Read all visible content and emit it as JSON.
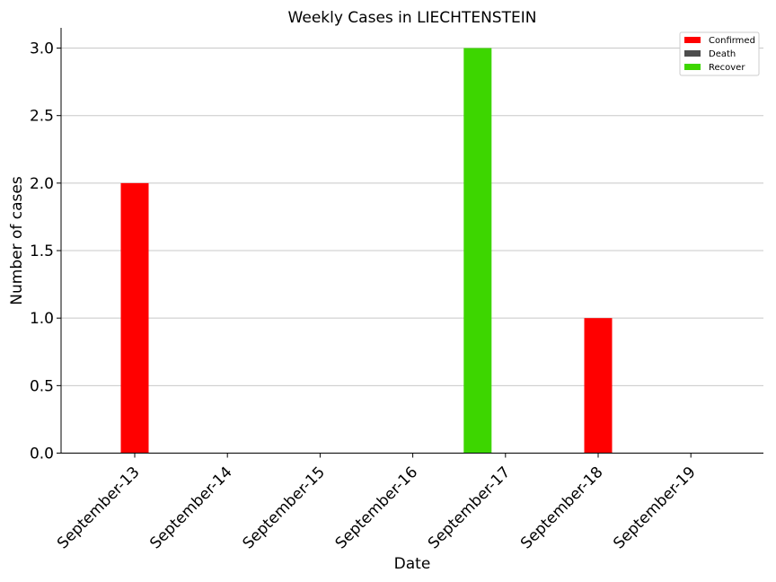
{
  "chart_data": {
    "type": "bar",
    "title": "Weekly Cases in LIECHTENSTEIN",
    "xlabel": "Date",
    "ylabel": "Number of cases",
    "categories": [
      "September-13",
      "September-14",
      "September-15",
      "September-16",
      "September-17",
      "September-18",
      "September-19"
    ],
    "series": [
      {
        "name": "Confirmed",
        "color": "#ff0000",
        "values": [
          2,
          0,
          0,
          0,
          0,
          1,
          0
        ]
      },
      {
        "name": "Death",
        "color": "#4d4d4d",
        "values": [
          0,
          0,
          0,
          0,
          0,
          0,
          0
        ]
      },
      {
        "name": "Recover",
        "color": "#3dd600",
        "values": [
          0,
          0,
          0,
          0,
          3,
          0,
          0
        ]
      }
    ],
    "yticks": [
      "0.0",
      "0.5",
      "1.0",
      "1.5",
      "2.0",
      "2.5",
      "3.0"
    ],
    "ylim": [
      0,
      3.15
    ],
    "grid": "horizontal",
    "legend_position": "top-right"
  }
}
